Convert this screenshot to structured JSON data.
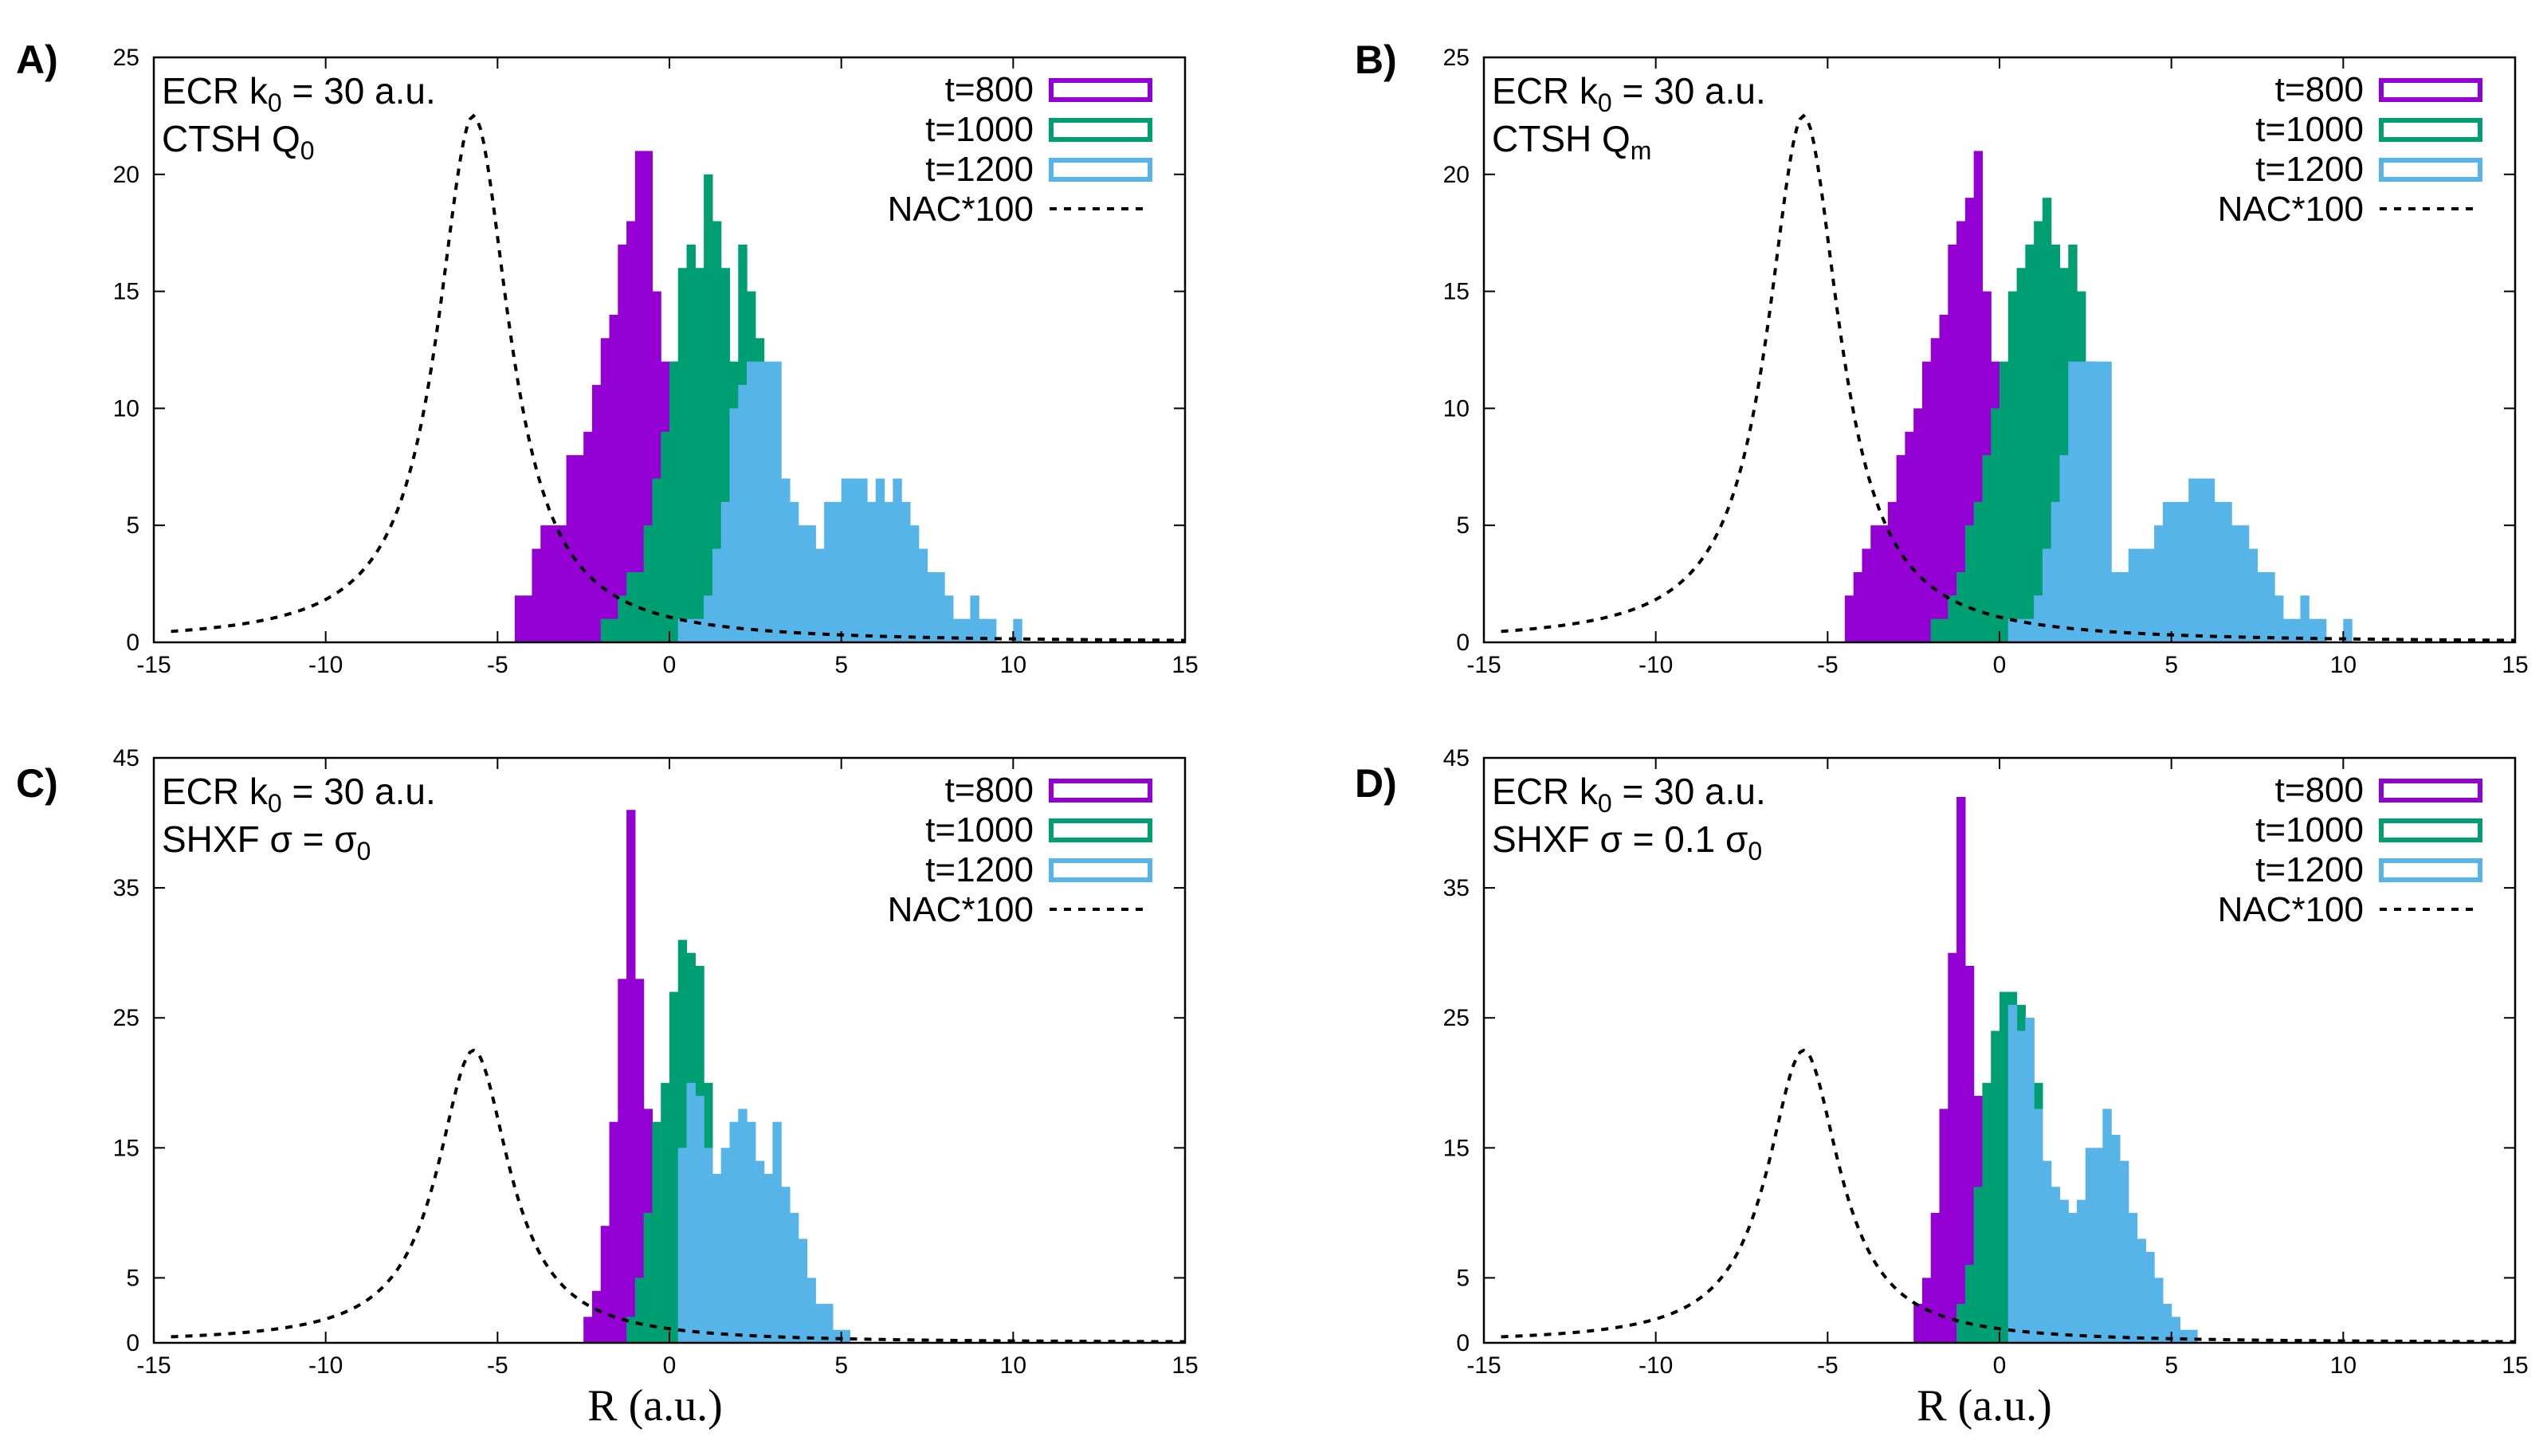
{
  "chart_data": [
    {
      "type": "bar",
      "panel": "A)",
      "annotation_line1": {
        "main": "ECR k",
        "sub": "0",
        "rest": " = 30 a.u."
      },
      "annotation_line2": {
        "main": "CTSH Q",
        "sub": "0",
        "rest": ""
      },
      "xlim": [
        -15,
        15
      ],
      "ylim": [
        0,
        25
      ],
      "xticks": [
        -15,
        -10,
        -5,
        0,
        5,
        10,
        15
      ],
      "yticks": [
        0,
        5,
        10,
        15,
        20,
        25
      ],
      "bin_width": 0.25,
      "series": [
        {
          "name": "t=800",
          "color": "#9400d3",
          "start": -4.75,
          "values": [
            0,
            2,
            2,
            4,
            5,
            5,
            5,
            8,
            8,
            9,
            11,
            13,
            14,
            17,
            18,
            21,
            21,
            15,
            12,
            12,
            7,
            5,
            0
          ]
        },
        {
          "name": "t=1000",
          "color": "#009e73",
          "start": -2.0,
          "values": [
            1,
            1,
            2,
            3,
            3,
            5,
            7,
            9,
            12,
            16,
            17,
            16,
            20,
            18,
            16,
            12,
            17,
            15,
            13,
            10,
            0
          ]
        },
        {
          "name": "t=1200",
          "color": "#56b4e9",
          "start": 0.25,
          "values": [
            1,
            1,
            1,
            2,
            4,
            6,
            10,
            11,
            12,
            12,
            12,
            12,
            7,
            6,
            5,
            5,
            4,
            6,
            6,
            7,
            7,
            7,
            6,
            7,
            6,
            7,
            6,
            5,
            4,
            3,
            3,
            2,
            1,
            1,
            2,
            1,
            1,
            0,
            0,
            1,
            0,
            0,
            0
          ]
        },
        {
          "name": "NAC*100",
          "style": "dashed",
          "center": -5.7,
          "amplitude": 22.5
        }
      ]
    },
    {
      "type": "bar",
      "panel": "B)",
      "annotation_line1": {
        "main": "ECR k",
        "sub": "0",
        "rest": " = 30 a.u."
      },
      "annotation_line2": {
        "main": "CTSH Q",
        "sub": "m",
        "rest": ""
      },
      "xlim": [
        -15,
        15
      ],
      "ylim": [
        0,
        25
      ],
      "xticks": [
        -15,
        -10,
        -5,
        0,
        5,
        10,
        15
      ],
      "yticks": [
        0,
        5,
        10,
        15,
        20,
        25
      ],
      "bin_width": 0.25,
      "series": [
        {
          "name": "t=800",
          "color": "#9400d3",
          "start": -4.75,
          "values": [
            0,
            2,
            3,
            4,
            5,
            5,
            6,
            8,
            9,
            10,
            12,
            13,
            14,
            17,
            18,
            19,
            21,
            15,
            12,
            10,
            8,
            5,
            0
          ]
        },
        {
          "name": "t=1000",
          "color": "#009e73",
          "start": -2.0,
          "values": [
            1,
            1,
            2,
            3,
            5,
            6,
            8,
            10,
            12,
            15,
            16,
            17,
            18,
            19,
            17,
            16,
            17,
            15,
            12,
            8,
            0
          ]
        },
        {
          "name": "t=1200",
          "color": "#56b4e9",
          "start": 0.25,
          "values": [
            1,
            1,
            1,
            2,
            4,
            6,
            8,
            12,
            12,
            12,
            12,
            12,
            3,
            3,
            4,
            4,
            4,
            5,
            6,
            6,
            6,
            7,
            7,
            7,
            6,
            6,
            5,
            5,
            4,
            3,
            3,
            2,
            1,
            1,
            2,
            1,
            1,
            0,
            0,
            1,
            0,
            0,
            0
          ]
        },
        {
          "name": "NAC*100",
          "style": "dashed",
          "center": -5.7,
          "amplitude": 22.5
        }
      ]
    },
    {
      "type": "bar",
      "panel": "C)",
      "annotation_line1": {
        "main": "ECR k",
        "sub": "0",
        "rest": " = 30 a.u."
      },
      "annotation_line2": {
        "main": "SHXF σ = σ",
        "sub": "0",
        "rest": ""
      },
      "xlim": [
        -15,
        15
      ],
      "ylim": [
        0,
        45
      ],
      "xticks": [
        -15,
        -10,
        -5,
        0,
        5,
        10,
        15
      ],
      "yticks": [
        0,
        5,
        15,
        25,
        35,
        45
      ],
      "bin_width": 0.25,
      "series": [
        {
          "name": "t=800",
          "color": "#9400d3",
          "start": -2.75,
          "values": [
            0,
            2,
            4,
            9,
            17,
            28,
            41,
            28,
            18,
            5
          ]
        },
        {
          "name": "t=1000",
          "color": "#009e73",
          "start": -1.25,
          "values": [
            2,
            5,
            10,
            17,
            20,
            27,
            31,
            30,
            29,
            20
          ]
        },
        {
          "name": "t=1200",
          "color": "#56b4e9",
          "start": 0.25,
          "values": [
            15,
            20,
            19,
            15,
            13,
            15,
            17,
            18,
            17,
            14,
            13,
            17,
            12,
            10,
            8,
            5,
            3,
            3,
            1,
            1,
            0,
            0,
            0,
            0,
            0,
            0,
            0,
            0,
            0,
            0,
            0,
            0,
            0,
            0
          ]
        },
        {
          "name": "NAC*100",
          "style": "dashed",
          "center": -5.7,
          "amplitude": 22.5
        }
      ]
    },
    {
      "type": "bar",
      "panel": "D)",
      "annotation_line1": {
        "main": "ECR k",
        "sub": "0",
        "rest": " = 30 a.u."
      },
      "annotation_line2": {
        "main": "SHXF σ = 0.1 σ",
        "sub": "0",
        "rest": ""
      },
      "xlim": [
        -15,
        15
      ],
      "ylim": [
        0,
        45
      ],
      "xticks": [
        -15,
        -10,
        -5,
        0,
        5,
        10,
        15
      ],
      "yticks": [
        0,
        5,
        15,
        25,
        35,
        45
      ],
      "bin_width": 0.25,
      "series": [
        {
          "name": "t=800",
          "color": "#9400d3",
          "start": -2.75,
          "values": [
            0,
            3,
            5,
            10,
            18,
            30,
            42,
            29,
            19,
            6
          ]
        },
        {
          "name": "t=1000",
          "color": "#009e73",
          "start": -1.25,
          "values": [
            3,
            6,
            12,
            20,
            24,
            27,
            27,
            26,
            25,
            20
          ]
        },
        {
          "name": "t=1200",
          "color": "#56b4e9",
          "start": 0.25,
          "values": [
            26,
            24,
            25,
            18,
            14,
            12,
            11,
            10,
            11,
            15,
            15,
            18,
            16,
            14,
            10,
            8,
            7,
            5,
            3,
            2,
            1,
            1,
            0,
            0,
            0,
            0,
            0,
            0,
            0,
            0,
            0,
            0,
            0,
            0
          ]
        },
        {
          "name": "NAC*100",
          "style": "dashed",
          "center": -5.7,
          "amplitude": 22.5
        }
      ]
    }
  ],
  "legend_labels": [
    "t=800",
    "t=1000",
    "t=1200",
    "NAC*100"
  ],
  "xlabel": "R (a.u.)"
}
